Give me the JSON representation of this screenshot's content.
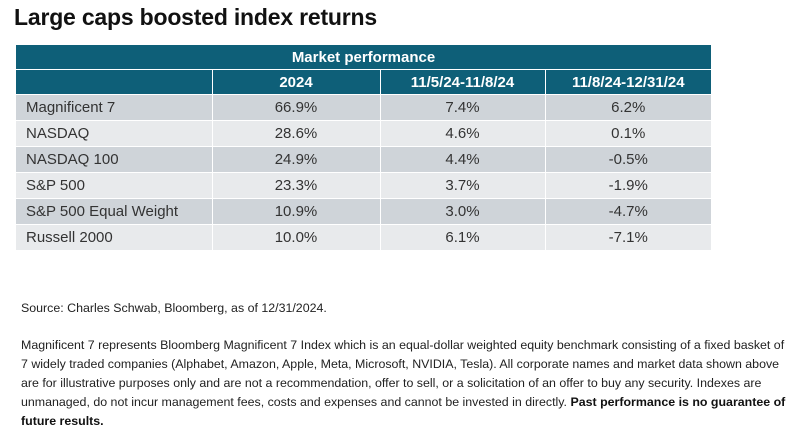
{
  "title": "Large caps boosted index returns",
  "chart_data": {
    "type": "table",
    "title": "Market performance",
    "columns": [
      "",
      "2024",
      "11/5/24-11/8/24",
      "11/8/24-12/31/24"
    ],
    "rows": [
      {
        "label": "Magnificent 7",
        "values": [
          "66.9%",
          "7.4%",
          "6.2%"
        ]
      },
      {
        "label": "NASDAQ",
        "values": [
          "28.6%",
          "4.6%",
          "0.1%"
        ]
      },
      {
        "label": "NASDAQ 100",
        "values": [
          "24.9%",
          "4.4%",
          "-0.5%"
        ]
      },
      {
        "label": "S&P 500",
        "values": [
          "23.3%",
          "3.7%",
          "-1.9%"
        ]
      },
      {
        "label": "S&P 500 Equal Weight",
        "values": [
          "10.9%",
          "3.0%",
          "-4.7%"
        ]
      },
      {
        "label": "Russell 2000",
        "values": [
          "10.0%",
          "6.1%",
          "-7.1%"
        ]
      }
    ],
    "header_color": "#0e5f78",
    "row_colors": [
      "#cfd4d9",
      "#e8eaec"
    ]
  },
  "source": "Source: Charles Schwab, Bloomberg, as of 12/31/2024.",
  "disclaimer": "Magnificent 7 represents Bloomberg Magnificent 7 Index which is an equal-dollar weighted equity benchmark consisting of a fixed basket of 7 widely traded companies (Alphabet, Amazon, Apple, Meta, Microsoft, NVIDIA, Tesla). All corporate names and market data shown above are for illustrative purposes only and are not a recommendation, offer to sell, or a solicitation of an offer to buy any security.  Indexes are unmanaged, do not incur management fees, costs and expenses and cannot be invested in directly.",
  "disclaimer_bold": "Past performance is no guarantee of future results."
}
